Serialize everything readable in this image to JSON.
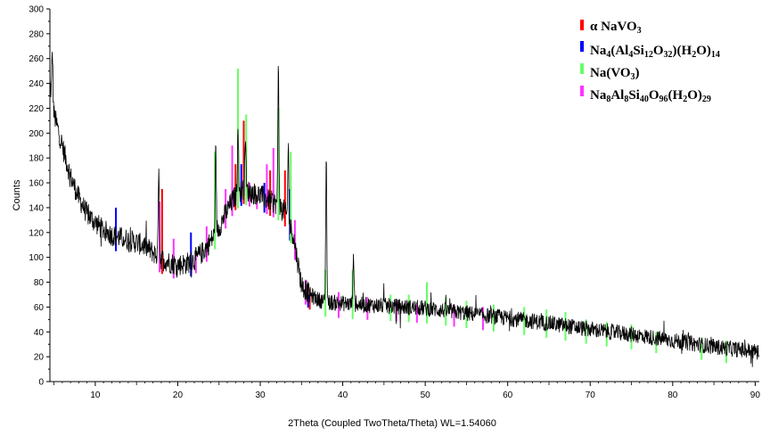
{
  "chart_data": {
    "type": "line",
    "xlabel": "2Theta (Coupled TwoTheta/Theta) WL=1.54060",
    "ylabel": "Counts",
    "xlim": [
      4.5,
      90.5
    ],
    "ylim": [
      0,
      300
    ],
    "x_ticks": [
      10,
      20,
      30,
      40,
      50,
      60,
      70,
      80,
      90
    ],
    "y_ticks": [
      0,
      20,
      40,
      60,
      80,
      100,
      120,
      140,
      160,
      180,
      200,
      220,
      240,
      260,
      280,
      300
    ],
    "grid": false,
    "legend_position": "top-right",
    "series": [
      {
        "name": "",
        "color": "#000000",
        "kind": "observed-pattern",
        "x": [
          4.5,
          5,
          6,
          7,
          8,
          9,
          10,
          11,
          12,
          13,
          14,
          15,
          16,
          17,
          18,
          19,
          20,
          21,
          22,
          23,
          24,
          25,
          26,
          27,
          28,
          29,
          30,
          31,
          32,
          33,
          34,
          35,
          36,
          37,
          38,
          40,
          42,
          45,
          50,
          55,
          60,
          65,
          70,
          75,
          80,
          85,
          90.5
        ],
        "values": [
          240,
          215,
          190,
          165,
          148,
          135,
          128,
          122,
          118,
          116,
          114,
          112,
          109,
          104,
          99,
          96,
          94,
          95,
          98,
          104,
          113,
          124,
          138,
          150,
          155,
          152,
          150,
          146,
          143,
          137,
          118,
          78,
          70,
          66,
          64,
          63,
          62,
          61,
          59,
          55,
          51,
          47,
          42,
          38,
          33,
          28,
          24
        ],
        "peaks": [
          {
            "x": 4.8,
            "y": 265
          },
          {
            "x": 17.7,
            "y": 178
          },
          {
            "x": 24.6,
            "y": 185
          },
          {
            "x": 27.3,
            "y": 210
          },
          {
            "x": 28.2,
            "y": 200
          },
          {
            "x": 32.2,
            "y": 255
          },
          {
            "x": 33.4,
            "y": 190
          },
          {
            "x": 38.0,
            "y": 183
          },
          {
            "x": 41.3,
            "y": 105
          }
        ]
      }
    ],
    "reference_patterns": [
      {
        "name": "α NaVO3",
        "color": "#ff0000",
        "sticks": [
          {
            "x": 18.1,
            "y": 155
          },
          {
            "x": 27.0,
            "y": 175
          },
          {
            "x": 28.0,
            "y": 210
          },
          {
            "x": 31.2,
            "y": 170
          },
          {
            "x": 33.0,
            "y": 170
          },
          {
            "x": 36.0,
            "y": 75
          }
        ]
      },
      {
        "name": "Na4(Al4Si12O32)(H2O)14",
        "color": "#0000ff",
        "sticks": [
          {
            "x": 12.5,
            "y": 140
          },
          {
            "x": 21.6,
            "y": 120
          },
          {
            "x": 27.7,
            "y": 175
          },
          {
            "x": 30.5,
            "y": 160
          },
          {
            "x": 33.6,
            "y": 155
          },
          {
            "x": 35.8,
            "y": 70
          }
        ]
      },
      {
        "name": "Na(VO3)",
        "color": "#66ff66",
        "sticks": [
          {
            "x": 24.5,
            "y": 185
          },
          {
            "x": 27.3,
            "y": 252
          },
          {
            "x": 28.3,
            "y": 215
          },
          {
            "x": 32.2,
            "y": 220
          },
          {
            "x": 33.7,
            "y": 185
          },
          {
            "x": 37.9,
            "y": 90
          },
          {
            "x": 41.2,
            "y": 90
          },
          {
            "x": 45.8,
            "y": 70
          },
          {
            "x": 48.0,
            "y": 70
          },
          {
            "x": 50.2,
            "y": 80
          },
          {
            "x": 52.5,
            "y": 68
          },
          {
            "x": 55.0,
            "y": 65
          },
          {
            "x": 58.3,
            "y": 62
          },
          {
            "x": 62.0,
            "y": 60
          },
          {
            "x": 64.7,
            "y": 58
          },
          {
            "x": 67.0,
            "y": 56
          },
          {
            "x": 69.5,
            "y": 50
          },
          {
            "x": 72.0,
            "y": 48
          },
          {
            "x": 75.0,
            "y": 46
          },
          {
            "x": 78.0,
            "y": 40
          },
          {
            "x": 83.5,
            "y": 35
          },
          {
            "x": 86.5,
            "y": 33
          }
        ]
      },
      {
        "name": "Na8Al8Si40O96(H2O)29",
        "color": "#ff33ff",
        "sticks": [
          {
            "x": 17.8,
            "y": 145
          },
          {
            "x": 19.5,
            "y": 115
          },
          {
            "x": 22.2,
            "y": 105
          },
          {
            "x": 23.5,
            "y": 125
          },
          {
            "x": 25.8,
            "y": 155
          },
          {
            "x": 26.6,
            "y": 190
          },
          {
            "x": 28.7,
            "y": 160
          },
          {
            "x": 29.6,
            "y": 150
          },
          {
            "x": 30.8,
            "y": 175
          },
          {
            "x": 31.6,
            "y": 188
          },
          {
            "x": 34.2,
            "y": 130
          },
          {
            "x": 35.5,
            "y": 82
          },
          {
            "x": 39.5,
            "y": 72
          },
          {
            "x": 43.0,
            "y": 68
          },
          {
            "x": 46.5,
            "y": 66
          },
          {
            "x": 49.0,
            "y": 62
          },
          {
            "x": 53.5,
            "y": 62
          },
          {
            "x": 57.0,
            "y": 60
          }
        ]
      }
    ],
    "legend": [
      {
        "label": "α NaVO",
        "sub": "3",
        "color": "#ff0000"
      },
      {
        "label": "Na",
        "color": "#0000ff"
      },
      {
        "label": "Na(VO",
        "color": "#66ff66"
      },
      {
        "label": "Na",
        "color": "#ff33ff"
      }
    ]
  }
}
